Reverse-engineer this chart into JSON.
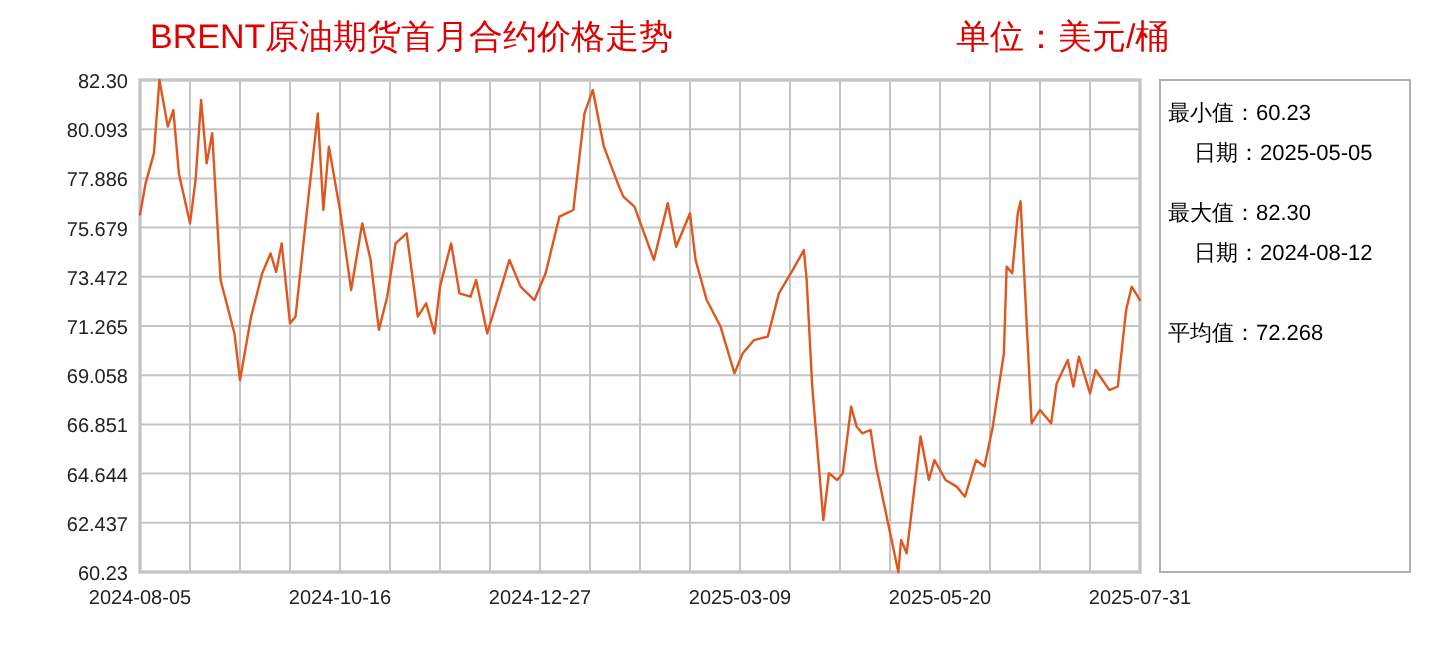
{
  "chart_data": {
    "type": "line",
    "title": "BRENT原油期货首月合约价格走势",
    "subtitle": "单位：美元/桶",
    "annotations": [
      "最小值：60.23",
      "日期：2025-05-05",
      "最大值：82.30",
      "日期：2024-08-12",
      "平均值：72.268"
    ],
    "grid": true,
    "ylim": [
      60.23,
      82.3
    ],
    "yticks": [
      60.23,
      62.437,
      64.644,
      66.851,
      69.058,
      71.265,
      73.472,
      75.679,
      77.886,
      80.093,
      {
        "value": 82.3,
        "label": "82.30"
      }
    ],
    "xlim": [
      "2024-08-05",
      "2025-07-31"
    ],
    "xticks": [
      "2024-08-05",
      {
        "value": "2024-08-23",
        "label": null
      },
      {
        "value": "2024-09-10",
        "label": null
      },
      {
        "value": "2024-09-28",
        "label": null
      },
      "2024-10-16",
      {
        "value": "2024-11-03",
        "label": null
      },
      {
        "value": "2024-11-21",
        "label": null
      },
      {
        "value": "2024-12-09",
        "label": null
      },
      "2024-12-27",
      {
        "value": "2025-01-14",
        "label": null
      },
      {
        "value": "2025-02-01",
        "label": null
      },
      {
        "value": "2025-02-19",
        "label": null
      },
      "2025-03-09",
      {
        "value": "2025-03-27",
        "label": null
      },
      {
        "value": "2025-04-14",
        "label": null
      },
      {
        "value": "2025-05-02",
        "label": null
      },
      "2025-05-20",
      {
        "value": "2025-06-07",
        "label": null
      },
      {
        "value": "2025-06-25",
        "label": null
      },
      {
        "value": "2025-07-13",
        "label": null
      },
      "2025-07-31"
    ],
    "x": [
      "2024-08-05",
      "2024-08-07",
      "2024-08-10",
      "2024-08-12",
      "2024-08-15",
      "2024-08-17",
      "2024-08-19",
      "2024-08-23",
      "2024-08-25",
      "2024-08-27",
      "2024-08-29",
      "2024-08-31",
      "2024-09-03",
      "2024-09-08",
      "2024-09-10",
      "2024-09-14",
      "2024-09-18",
      "2024-09-21",
      "2024-09-23",
      "2024-09-25",
      "2024-09-28",
      "2024-09-30",
      "2024-10-04",
      "2024-10-08",
      "2024-10-10",
      "2024-10-12",
      "2024-10-16",
      "2024-10-20",
      "2024-10-24",
      "2024-10-27",
      "2024-10-30",
      "2024-11-02",
      "2024-11-05",
      "2024-11-09",
      "2024-11-13",
      "2024-11-16",
      "2024-11-19",
      "2024-11-21",
      "2024-11-25",
      "2024-11-28",
      "2024-12-02",
      "2024-12-04",
      "2024-12-08",
      "2024-12-12",
      "2024-12-16",
      "2024-12-20",
      "2024-12-25",
      "2024-12-29",
      "2025-01-03",
      "2025-01-08",
      "2025-01-12",
      "2025-01-15",
      "2025-01-19",
      "2025-01-24",
      "2025-01-26",
      "2025-01-30",
      "2025-02-06",
      "2025-02-11",
      "2025-02-14",
      "2025-02-19",
      "2025-02-21",
      "2025-02-25",
      "2025-03-02",
      "2025-03-07",
      "2025-03-10",
      "2025-03-14",
      "2025-03-19",
      "2025-03-23",
      "2025-03-28",
      "2025-04-01",
      "2025-04-02",
      "2025-04-04",
      "2025-04-08",
      "2025-04-10",
      "2025-04-13",
      "2025-04-15",
      "2025-04-18",
      "2025-04-20",
      "2025-04-22",
      "2025-04-25",
      "2025-04-27",
      "2025-05-05",
      "2025-05-06",
      "2025-05-08",
      "2025-05-13",
      "2025-05-16",
      "2025-05-18",
      "2025-05-22",
      "2025-05-26",
      "2025-05-29",
      "2025-06-02",
      "2025-06-05",
      "2025-06-08",
      "2025-06-12",
      "2025-06-13",
      "2025-06-15",
      "2025-06-17",
      "2025-06-18",
      "2025-06-22",
      "2025-06-25",
      "2025-06-29",
      "2025-07-01",
      "2025-07-05",
      "2025-07-07",
      "2025-07-09",
      "2025-07-13",
      "2025-07-15",
      "2025-07-20",
      "2025-07-23",
      "2025-07-26",
      "2025-07-28",
      "2025-07-31"
    ],
    "series": [
      {
        "color": "#e0561f",
        "values": [
          76.26,
          77.66,
          79.01,
          82.3,
          80.21,
          80.95,
          78.11,
          75.87,
          77.81,
          81.4,
          78.56,
          79.91,
          73.33,
          70.93,
          68.84,
          71.69,
          73.63,
          74.52,
          73.69,
          74.97,
          71.38,
          71.69,
          76.32,
          80.8,
          76.47,
          79.31,
          76.47,
          72.88,
          75.87,
          74.23,
          71.09,
          72.58,
          74.97,
          75.42,
          71.69,
          72.28,
          70.93,
          73.03,
          74.97,
          72.73,
          72.58,
          73.33,
          70.93,
          72.58,
          74.23,
          73.03,
          72.43,
          73.63,
          76.17,
          76.47,
          80.8,
          81.85,
          79.31,
          77.66,
          77.07,
          76.62,
          74.23,
          76.77,
          74.82,
          76.32,
          74.23,
          72.43,
          71.24,
          69.14,
          70.04,
          70.63,
          70.79,
          72.73,
          73.78,
          74.67,
          73.33,
          68.55,
          62.56,
          64.66,
          64.36,
          64.66,
          67.65,
          66.75,
          66.45,
          66.6,
          64.96,
          60.23,
          61.67,
          61.07,
          66.31,
          64.36,
          65.25,
          64.36,
          64.06,
          63.61,
          65.25,
          64.96,
          66.75,
          70.04,
          73.93,
          73.63,
          76.32,
          76.86,
          66.9,
          67.5,
          66.9,
          68.69,
          69.74,
          68.55,
          69.89,
          68.24,
          69.29,
          68.39,
          68.55,
          71.98,
          73.03,
          72.43
        ]
      }
    ]
  }
}
